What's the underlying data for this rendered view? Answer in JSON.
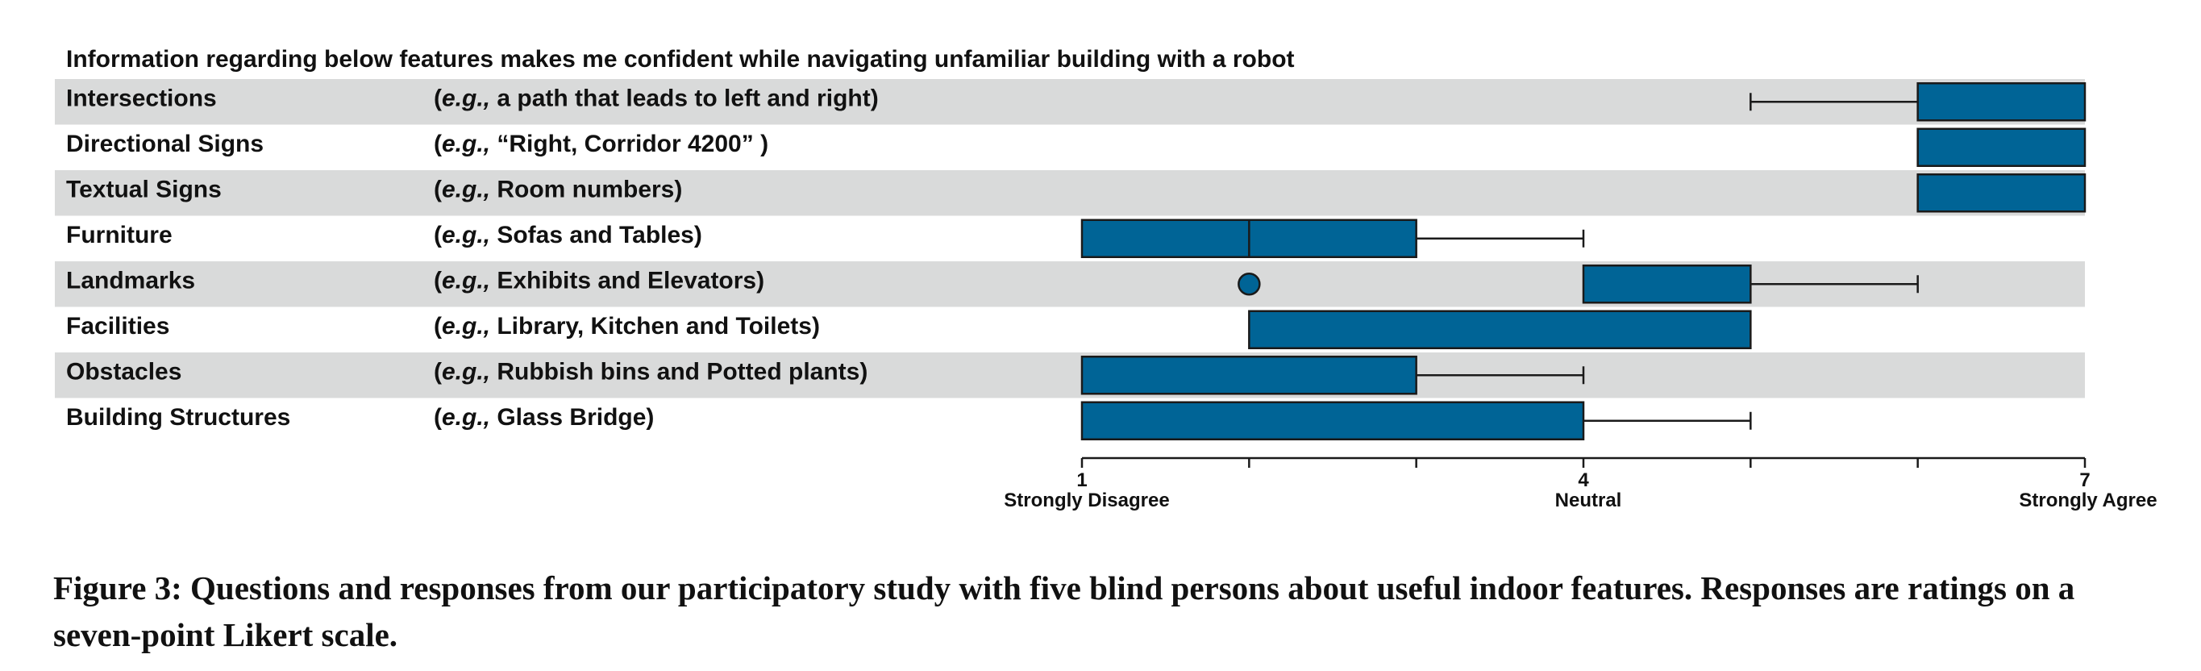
{
  "chart_data": {
    "type": "box",
    "title": "Information regarding below features makes me confident while navigating unfamiliar building with a robot",
    "scale": {
      "min": 1,
      "max": 7
    },
    "ticks": [
      1,
      2,
      3,
      4,
      5,
      6,
      7
    ],
    "tick_labels": [
      {
        "value": 1,
        "number": "1",
        "word": "Strongly Disagree"
      },
      {
        "value": 4,
        "number": "4",
        "word": "Neutral"
      },
      {
        "value": 7,
        "number": "7",
        "word": "Strongly Agree"
      }
    ],
    "rows": [
      {
        "label": "Intersections",
        "eg": "e.g.,",
        "example": "a path that leads to left and right)",
        "q1": 6,
        "median": 7,
        "q3": 7,
        "whisker_low": 5,
        "whisker_high": 7,
        "outliers": []
      },
      {
        "label": "Directional Signs",
        "eg": "e.g.,",
        "example": "“Right, Corridor 4200” )",
        "q1": 6,
        "median": 7,
        "q3": 7,
        "whisker_low": 6,
        "whisker_high": 7,
        "outliers": []
      },
      {
        "label": "Textual Signs",
        "eg": "e.g.,",
        "example": "Room numbers)",
        "q1": 6,
        "median": 7,
        "q3": 7,
        "whisker_low": 6,
        "whisker_high": 7,
        "outliers": []
      },
      {
        "label": "Furniture",
        "eg": "e.g.,",
        "example": "Sofas and Tables)",
        "q1": 1,
        "median": 2,
        "q3": 3,
        "whisker_low": 1,
        "whisker_high": 4,
        "outliers": []
      },
      {
        "label": "Landmarks",
        "eg": "e.g.,",
        "example": "Exhibits and Elevators)",
        "q1": 4,
        "median": 4,
        "q3": 5,
        "whisker_low": 4,
        "whisker_high": 6,
        "outliers": [
          2
        ]
      },
      {
        "label": "Facilities",
        "eg": "e.g.,",
        "example": "Library, Kitchen and Toilets)",
        "q1": 2,
        "median": 2,
        "q3": 5,
        "whisker_low": 2,
        "whisker_high": 5,
        "outliers": []
      },
      {
        "label": "Obstacles",
        "eg": "e.g.,",
        "example": "Rubbish bins and Potted plants)",
        "q1": 1,
        "median": 1,
        "q3": 3,
        "whisker_low": 1,
        "whisker_high": 4,
        "outliers": []
      },
      {
        "label": "Building Structures",
        "eg": "e.g.,",
        "example": "Glass Bridge)",
        "q1": 1,
        "median": 1,
        "q3": 4,
        "whisker_low": 1,
        "whisker_high": 5,
        "outliers": []
      }
    ],
    "colors": {
      "box": "#006496",
      "box_edge": "#1a1a1a",
      "band": "#d9dada"
    }
  },
  "caption": "Figure 3: Questions and responses from our participatory study with five blind persons about useful indoor features. Responses are ratings on a seven-point Likert scale."
}
